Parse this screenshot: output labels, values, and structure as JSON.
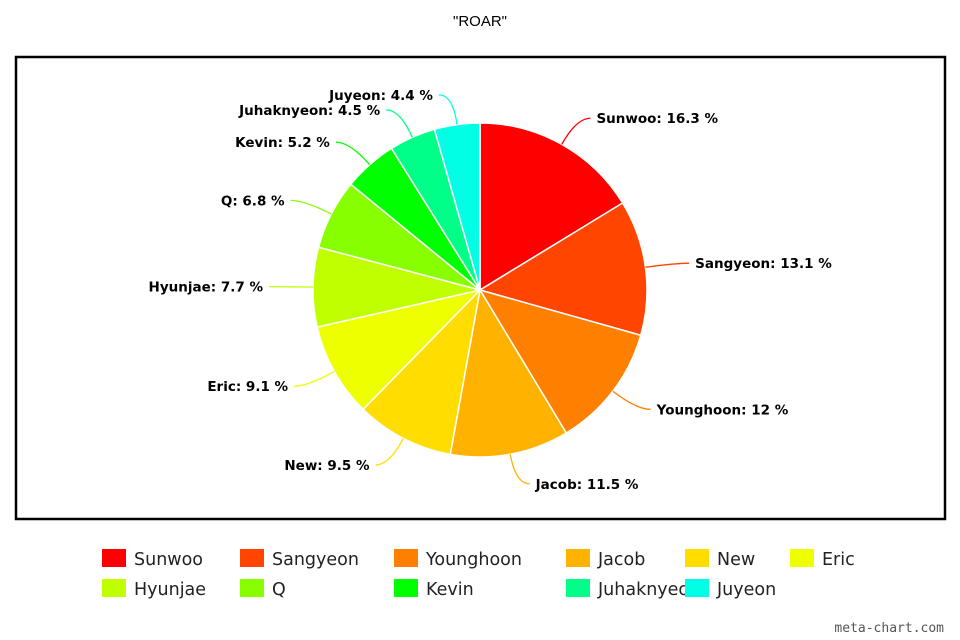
{
  "chart_data": {
    "type": "pie",
    "title": "\"ROAR\"",
    "categories": [
      "Sunwoo",
      "Sangyeon",
      "Younghoon",
      "Jacob",
      "New",
      "Eric",
      "Hyunjae",
      "Q",
      "Kevin",
      "Juhaknyeon",
      "Juyeon"
    ],
    "values": [
      16.3,
      13.1,
      12,
      11.5,
      9.5,
      9.1,
      7.7,
      6.8,
      5.2,
      4.5,
      4.4
    ],
    "labels": [
      "Sunwoo: 16.3 %",
      "Sangyeon: 13.1 %",
      "Younghoon: 12 %",
      "Jacob: 11.5 %",
      "New: 9.5 %",
      "Eric: 9.1 %",
      "Hyunjae: 7.7 %",
      "Q: 6.8 %",
      "Kevin: 5.2 %",
      "Juhaknyeon: 4.5 %",
      "Juyeon: 4.4 %"
    ],
    "colors": [
      "#ff0000",
      "#ff4500",
      "#ff7f00",
      "#ffb300",
      "#ffdd00",
      "#eeff00",
      "#bfff00",
      "#88ff00",
      "#00ff00",
      "#00ff88",
      "#00ffe5"
    ],
    "legend_position": "bottom"
  },
  "watermark": "meta-chart.com"
}
